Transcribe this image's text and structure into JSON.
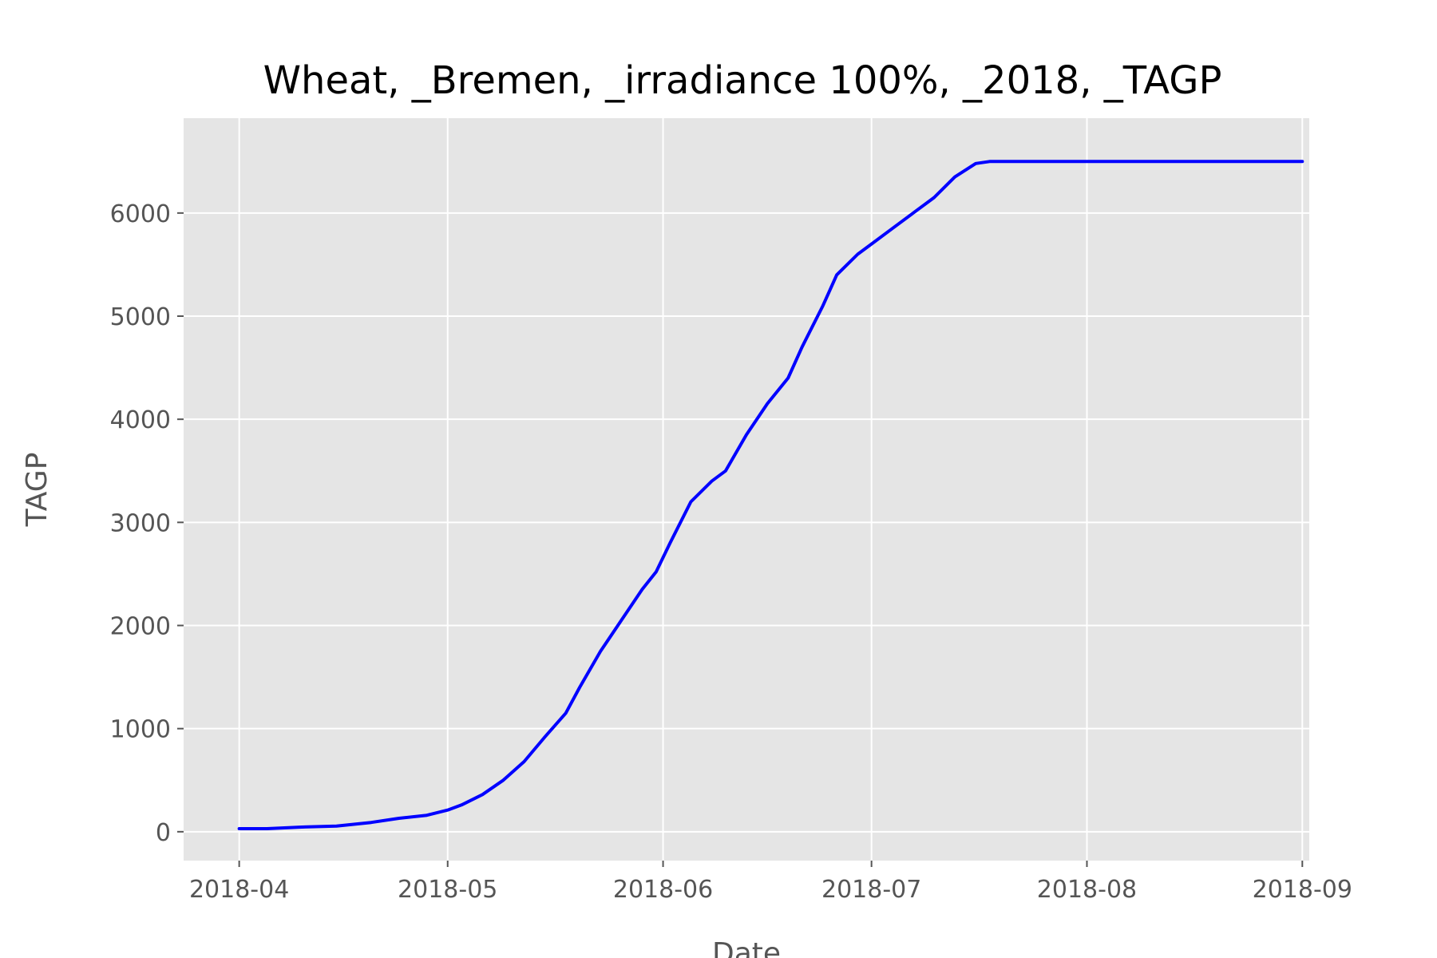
{
  "chart_data": {
    "type": "line",
    "title": "Wheat, _Bremen, _irradiance 100%, _2018, _TAGP",
    "xlabel": "Date",
    "ylabel": "TAGP",
    "x_axis_type": "date",
    "xlim": [
      "2018-03-24",
      "2018-09-02"
    ],
    "ylim": [
      -280,
      6920
    ],
    "x_ticks": [
      "2018-04-01",
      "2018-05-01",
      "2018-06-01",
      "2018-07-01",
      "2018-08-01",
      "2018-09-01"
    ],
    "x_tick_labels": [
      "2018-04",
      "2018-05",
      "2018-06",
      "2018-07",
      "2018-08",
      "2018-09"
    ],
    "y_ticks": [
      0,
      1000,
      2000,
      3000,
      4000,
      5000,
      6000
    ],
    "y_tick_labels": [
      "0",
      "1000",
      "2000",
      "3000",
      "4000",
      "5000",
      "6000"
    ],
    "grid": true,
    "background": "#e5e5e5",
    "grid_color": "#ffffff",
    "series": [
      {
        "color": "#0000ff",
        "x": [
          "2018-04-01",
          "2018-04-05",
          "2018-04-10",
          "2018-04-15",
          "2018-04-20",
          "2018-04-24",
          "2018-04-28",
          "2018-05-01",
          "2018-05-03",
          "2018-05-06",
          "2018-05-09",
          "2018-05-12",
          "2018-05-15",
          "2018-05-18",
          "2018-05-20",
          "2018-05-23",
          "2018-05-26",
          "2018-05-29",
          "2018-05-31",
          "2018-06-02",
          "2018-06-05",
          "2018-06-08",
          "2018-06-10",
          "2018-06-13",
          "2018-06-16",
          "2018-06-19",
          "2018-06-21",
          "2018-06-24",
          "2018-06-26",
          "2018-06-29",
          "2018-07-01",
          "2018-07-04",
          "2018-07-07",
          "2018-07-10",
          "2018-07-13",
          "2018-07-16",
          "2018-07-18",
          "2018-07-20",
          "2018-07-25",
          "2018-08-01",
          "2018-08-10",
          "2018-08-20",
          "2018-09-01"
        ],
        "values": [
          30,
          30,
          45,
          55,
          90,
          130,
          160,
          210,
          260,
          360,
          500,
          680,
          920,
          1150,
          1400,
          1750,
          2050,
          2350,
          2520,
          2800,
          3200,
          3400,
          3500,
          3850,
          4150,
          4400,
          4700,
          5100,
          5400,
          5600,
          5700,
          5850,
          6000,
          6150,
          6350,
          6480,
          6500,
          6500,
          6500,
          6500,
          6500,
          6500,
          6500
        ]
      }
    ]
  }
}
